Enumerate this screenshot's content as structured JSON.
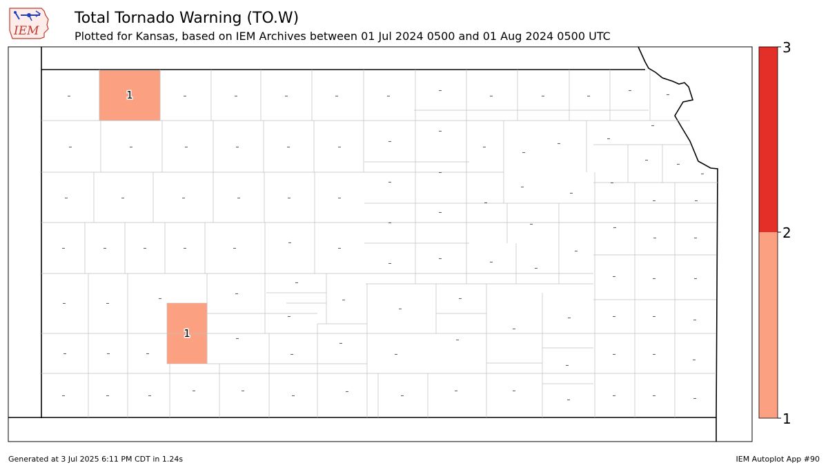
{
  "header": {
    "title": "Total Tornado Warning (TO.W)",
    "subtitle": "Plotted for Kansas, based on IEM Archives  between 01 Jul 2024 0500 and 01 Aug 2024 0500 UTC",
    "logo_text": "IEM"
  },
  "map": {
    "state": "Kansas",
    "counties": [
      {
        "label": "1",
        "count": 1,
        "fill": "#fca082"
      },
      {
        "label": "1",
        "count": 1,
        "fill": "#fca082"
      }
    ],
    "zero_marker": "–",
    "border_color": "#000000",
    "county_line_color": "#bfbfbf"
  },
  "colorbar": {
    "ticks": [
      "1",
      "2",
      "3"
    ],
    "bins": [
      {
        "from": 1,
        "to": 2,
        "color": "#fca082"
      },
      {
        "from": 2,
        "to": 3,
        "color": "#e32f27"
      }
    ]
  },
  "footer": {
    "left": "Generated at 3 Jul 2025 6:11 PM CDT in 1.24s",
    "right": "IEM Autoplot App #90"
  }
}
